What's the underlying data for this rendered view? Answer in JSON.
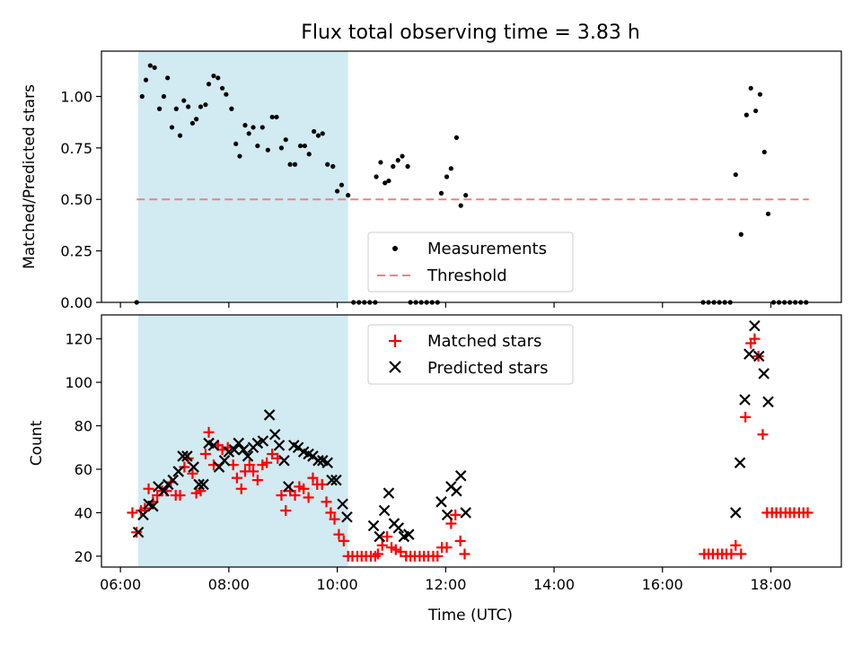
{
  "chart_data": [
    {
      "type": "scatter",
      "title": "Flux total observing time = 3.83 h",
      "xlabel": "",
      "ylabel": "Matched/Predicted stars",
      "ylim": [
        0,
        1.22
      ],
      "yticks": [
        "0.00",
        "0.25",
        "0.50",
        "0.75",
        "1.00"
      ],
      "shaded_span_hours": [
        6.33,
        10.2
      ],
      "shade_color": "#add8e6",
      "legend_position": "lower-center",
      "series": [
        {
          "name": "Measurements",
          "kind": "scatter",
          "color": "#000000",
          "points": [
            [
              6.3,
              0
            ],
            [
              6.4,
              1.0
            ],
            [
              6.47,
              1.08
            ],
            [
              6.55,
              1.15
            ],
            [
              6.63,
              1.14
            ],
            [
              6.72,
              0.94
            ],
            [
              6.8,
              1.0
            ],
            [
              6.87,
              1.09
            ],
            [
              6.95,
              0.85
            ],
            [
              7.03,
              0.94
            ],
            [
              7.1,
              0.81
            ],
            [
              7.17,
              0.98
            ],
            [
              7.25,
              0.95
            ],
            [
              7.33,
              0.87
            ],
            [
              7.4,
              0.89
            ],
            [
              7.48,
              0.95
            ],
            [
              7.57,
              0.96
            ],
            [
              7.63,
              1.06
            ],
            [
              7.72,
              1.1
            ],
            [
              7.8,
              1.09
            ],
            [
              7.88,
              1.04
            ],
            [
              7.95,
              1.01
            ],
            [
              8.05,
              0.94
            ],
            [
              8.13,
              0.77
            ],
            [
              8.2,
              0.71
            ],
            [
              8.3,
              0.86
            ],
            [
              8.37,
              0.82
            ],
            [
              8.45,
              0.85
            ],
            [
              8.53,
              0.76
            ],
            [
              8.62,
              0.85
            ],
            [
              8.72,
              0.74
            ],
            [
              8.8,
              0.9
            ],
            [
              8.88,
              0.9
            ],
            [
              8.97,
              0.75
            ],
            [
              9.05,
              0.79
            ],
            [
              9.13,
              0.67
            ],
            [
              9.22,
              0.67
            ],
            [
              9.32,
              0.76
            ],
            [
              9.4,
              0.76
            ],
            [
              9.48,
              0.72
            ],
            [
              9.57,
              0.83
            ],
            [
              9.65,
              0.81
            ],
            [
              9.73,
              0.82
            ],
            [
              9.82,
              0.67
            ],
            [
              9.92,
              0.66
            ],
            [
              10.0,
              0.54
            ],
            [
              10.08,
              0.57
            ],
            [
              10.2,
              0.52
            ],
            [
              10.3,
              0
            ],
            [
              10.4,
              0
            ],
            [
              10.5,
              0
            ],
            [
              10.6,
              0
            ],
            [
              10.7,
              0
            ],
            [
              10.72,
              0.61
            ],
            [
              10.8,
              0.68
            ],
            [
              10.88,
              0.58
            ],
            [
              10.95,
              0.59
            ],
            [
              11.03,
              0.66
            ],
            [
              11.12,
              0.69
            ],
            [
              11.2,
              0.71
            ],
            [
              11.3,
              0.66
            ],
            [
              11.35,
              0
            ],
            [
              11.45,
              0
            ],
            [
              11.55,
              0
            ],
            [
              11.65,
              0
            ],
            [
              11.75,
              0
            ],
            [
              11.85,
              0
            ],
            [
              11.92,
              0.53
            ],
            [
              12.02,
              0.61
            ],
            [
              12.1,
              0.65
            ],
            [
              12.2,
              0.8
            ],
            [
              12.28,
              0.47
            ],
            [
              12.37,
              0.52
            ],
            [
              16.75,
              0
            ],
            [
              16.85,
              0
            ],
            [
              16.95,
              0
            ],
            [
              17.05,
              0
            ],
            [
              17.15,
              0
            ],
            [
              17.25,
              0
            ],
            [
              17.35,
              0.62
            ],
            [
              17.45,
              0.33
            ],
            [
              17.55,
              0.91
            ],
            [
              17.63,
              1.04
            ],
            [
              17.72,
              0.93
            ],
            [
              17.8,
              1.01
            ],
            [
              17.88,
              0.73
            ],
            [
              17.95,
              0.43
            ],
            [
              18.05,
              0
            ],
            [
              18.15,
              0
            ],
            [
              18.25,
              0
            ],
            [
              18.35,
              0
            ],
            [
              18.45,
              0
            ],
            [
              18.55,
              0
            ],
            [
              18.65,
              0
            ]
          ]
        },
        {
          "name": "Threshold",
          "kind": "line",
          "style": "dashed",
          "color": "#f08080",
          "points": [
            [
              6.3,
              0.5
            ],
            [
              18.7,
              0.5
            ]
          ]
        }
      ]
    },
    {
      "type": "scatter",
      "title": "",
      "xlabel": "Time (UTC)",
      "ylabel": "Count",
      "xlim": [
        5.65,
        19.3
      ],
      "ylim": [
        15,
        131
      ],
      "xticks": [
        "06:00",
        "08:00",
        "10:00",
        "12:00",
        "14:00",
        "16:00",
        "18:00"
      ],
      "yticks": [
        "20",
        "40",
        "60",
        "80",
        "100",
        "120"
      ],
      "shaded_span_hours": [
        6.33,
        10.2
      ],
      "shade_color": "#add8e6",
      "legend_position": "upper-center",
      "series": [
        {
          "name": "Matched stars",
          "kind": "plus",
          "color": "#ff0000",
          "points": [
            [
              6.22,
              40
            ],
            [
              6.3,
              31
            ],
            [
              6.38,
              41
            ],
            [
              6.45,
              42
            ],
            [
              6.52,
              51
            ],
            [
              6.6,
              45
            ],
            [
              6.68,
              48
            ],
            [
              6.77,
              50
            ],
            [
              6.85,
              50
            ],
            [
              6.93,
              54
            ],
            [
              7.02,
              48
            ],
            [
              7.1,
              48
            ],
            [
              7.18,
              61
            ],
            [
              7.25,
              65
            ],
            [
              7.33,
              58
            ],
            [
              7.4,
              49
            ],
            [
              7.48,
              50
            ],
            [
              7.57,
              67
            ],
            [
              7.63,
              77
            ],
            [
              7.72,
              62
            ],
            [
              7.8,
              71
            ],
            [
              7.88,
              69
            ],
            [
              7.98,
              70
            ],
            [
              8.08,
              62
            ],
            [
              8.15,
              56
            ],
            [
              8.23,
              51
            ],
            [
              8.3,
              59
            ],
            [
              8.38,
              62
            ],
            [
              8.45,
              59
            ],
            [
              8.53,
              55
            ],
            [
              8.62,
              62
            ],
            [
              8.7,
              63
            ],
            [
              8.8,
              67
            ],
            [
              8.9,
              65
            ],
            [
              8.97,
              48
            ],
            [
              9.05,
              41
            ],
            [
              9.13,
              50
            ],
            [
              9.22,
              48
            ],
            [
              9.3,
              52
            ],
            [
              9.38,
              51
            ],
            [
              9.47,
              47
            ],
            [
              9.55,
              56
            ],
            [
              9.63,
              53
            ],
            [
              9.72,
              53
            ],
            [
              9.8,
              45
            ],
            [
              9.88,
              40
            ],
            [
              9.95,
              37
            ],
            [
              10.03,
              30
            ],
            [
              10.12,
              27
            ],
            [
              10.2,
              20
            ],
            [
              10.28,
              20
            ],
            [
              10.37,
              20
            ],
            [
              10.45,
              20
            ],
            [
              10.53,
              20
            ],
            [
              10.62,
              20
            ],
            [
              10.7,
              20
            ],
            [
              10.75,
              21
            ],
            [
              10.83,
              25
            ],
            [
              10.92,
              29
            ],
            [
              11.0,
              24
            ],
            [
              11.08,
              23
            ],
            [
              11.17,
              22
            ],
            [
              11.27,
              20
            ],
            [
              11.35,
              20
            ],
            [
              11.43,
              20
            ],
            [
              11.52,
              20
            ],
            [
              11.6,
              20
            ],
            [
              11.68,
              20
            ],
            [
              11.77,
              20
            ],
            [
              11.85,
              20
            ],
            [
              11.93,
              24
            ],
            [
              12.02,
              24
            ],
            [
              12.1,
              35
            ],
            [
              12.18,
              39
            ],
            [
              12.27,
              27
            ],
            [
              12.35,
              21
            ],
            [
              16.77,
              21
            ],
            [
              16.85,
              21
            ],
            [
              16.93,
              21
            ],
            [
              17.02,
              21
            ],
            [
              17.1,
              21
            ],
            [
              17.18,
              21
            ],
            [
              17.27,
              21
            ],
            [
              17.35,
              25
            ],
            [
              17.45,
              21
            ],
            [
              17.53,
              84
            ],
            [
              17.63,
              118
            ],
            [
              17.7,
              120
            ],
            [
              17.77,
              112
            ],
            [
              17.85,
              76
            ],
            [
              17.93,
              40
            ],
            [
              18.02,
              40
            ],
            [
              18.1,
              40
            ],
            [
              18.18,
              40
            ],
            [
              18.27,
              40
            ],
            [
              18.35,
              40
            ],
            [
              18.43,
              40
            ],
            [
              18.52,
              40
            ],
            [
              18.6,
              40
            ],
            [
              18.68,
              40
            ]
          ]
        },
        {
          "name": "Predicted stars",
          "kind": "x",
          "color": "#000000",
          "points": [
            [
              6.33,
              31
            ],
            [
              6.42,
              39
            ],
            [
              6.52,
              44
            ],
            [
              6.6,
              43
            ],
            [
              6.7,
              52
            ],
            [
              6.8,
              50
            ],
            [
              6.88,
              53
            ],
            [
              6.97,
              55
            ],
            [
              7.07,
              59
            ],
            [
              7.15,
              66
            ],
            [
              7.23,
              66
            ],
            [
              7.35,
              61
            ],
            [
              7.45,
              53
            ],
            [
              7.53,
              53
            ],
            [
              7.63,
              72
            ],
            [
              7.72,
              71
            ],
            [
              7.82,
              61
            ],
            [
              7.92,
              64
            ],
            [
              8.0,
              68
            ],
            [
              8.1,
              69
            ],
            [
              8.18,
              72
            ],
            [
              8.27,
              69
            ],
            [
              8.35,
              66
            ],
            [
              8.45,
              70
            ],
            [
              8.53,
              72
            ],
            [
              8.63,
              73
            ],
            [
              8.75,
              85
            ],
            [
              8.85,
              76
            ],
            [
              8.93,
              71
            ],
            [
              9.02,
              64
            ],
            [
              9.1,
              52
            ],
            [
              9.2,
              71
            ],
            [
              9.28,
              70
            ],
            [
              9.38,
              68
            ],
            [
              9.47,
              67
            ],
            [
              9.55,
              66
            ],
            [
              9.65,
              64
            ],
            [
              9.73,
              64
            ],
            [
              9.82,
              63
            ],
            [
              9.9,
              55
            ],
            [
              9.98,
              55
            ],
            [
              10.1,
              44
            ],
            [
              10.18,
              38
            ],
            [
              10.67,
              34
            ],
            [
              10.78,
              29
            ],
            [
              10.87,
              41
            ],
            [
              10.95,
              49
            ],
            [
              11.05,
              35
            ],
            [
              11.13,
              33
            ],
            [
              11.23,
              29
            ],
            [
              11.32,
              30
            ],
            [
              11.92,
              45
            ],
            [
              12.03,
              39
            ],
            [
              12.1,
              52
            ],
            [
              12.2,
              50
            ],
            [
              12.28,
              57
            ],
            [
              12.37,
              40
            ],
            [
              17.35,
              40
            ],
            [
              17.43,
              63
            ],
            [
              17.52,
              92
            ],
            [
              17.6,
              113
            ],
            [
              17.7,
              126
            ],
            [
              17.78,
              112
            ],
            [
              17.87,
              104
            ],
            [
              17.95,
              91
            ]
          ]
        }
      ]
    }
  ]
}
